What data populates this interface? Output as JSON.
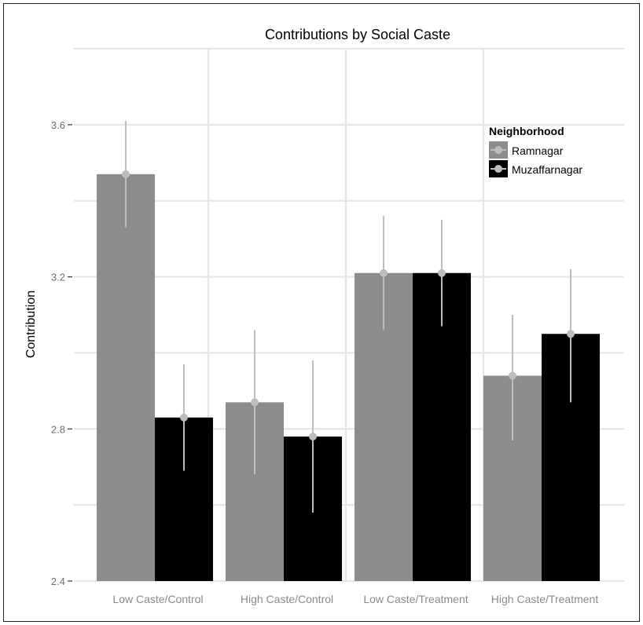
{
  "chart_data": {
    "type": "bar",
    "title": "Contributions by Social Caste",
    "xlabel": "",
    "ylabel": "Contribution",
    "categories": [
      "Low Caste/Control",
      "High Caste/Control",
      "Low Caste/Treatment",
      "High Caste/Treatment"
    ],
    "series": [
      {
        "name": "Ramnagar",
        "color": "#8c8c8e",
        "values": [
          3.47,
          2.87,
          3.21,
          2.94
        ],
        "error_low": [
          3.33,
          2.68,
          3.06,
          2.77
        ],
        "error_high": [
          3.61,
          3.06,
          3.36,
          3.1
        ]
      },
      {
        "name": "Muzaffarnagar",
        "color": "#000000",
        "values": [
          2.83,
          2.78,
          3.21,
          3.05
        ],
        "error_low": [
          2.69,
          2.58,
          3.07,
          2.87
        ],
        "error_high": [
          2.97,
          2.98,
          3.35,
          3.22
        ]
      }
    ],
    "ylim": [
      2.4,
      3.8
    ],
    "yticks": [
      "2.4",
      "2.8",
      "3.2",
      "3.6"
    ],
    "point_color": "#bdbdbd",
    "grid": true,
    "legend": {
      "title": "Neighborhood",
      "placement": "top-right"
    }
  }
}
